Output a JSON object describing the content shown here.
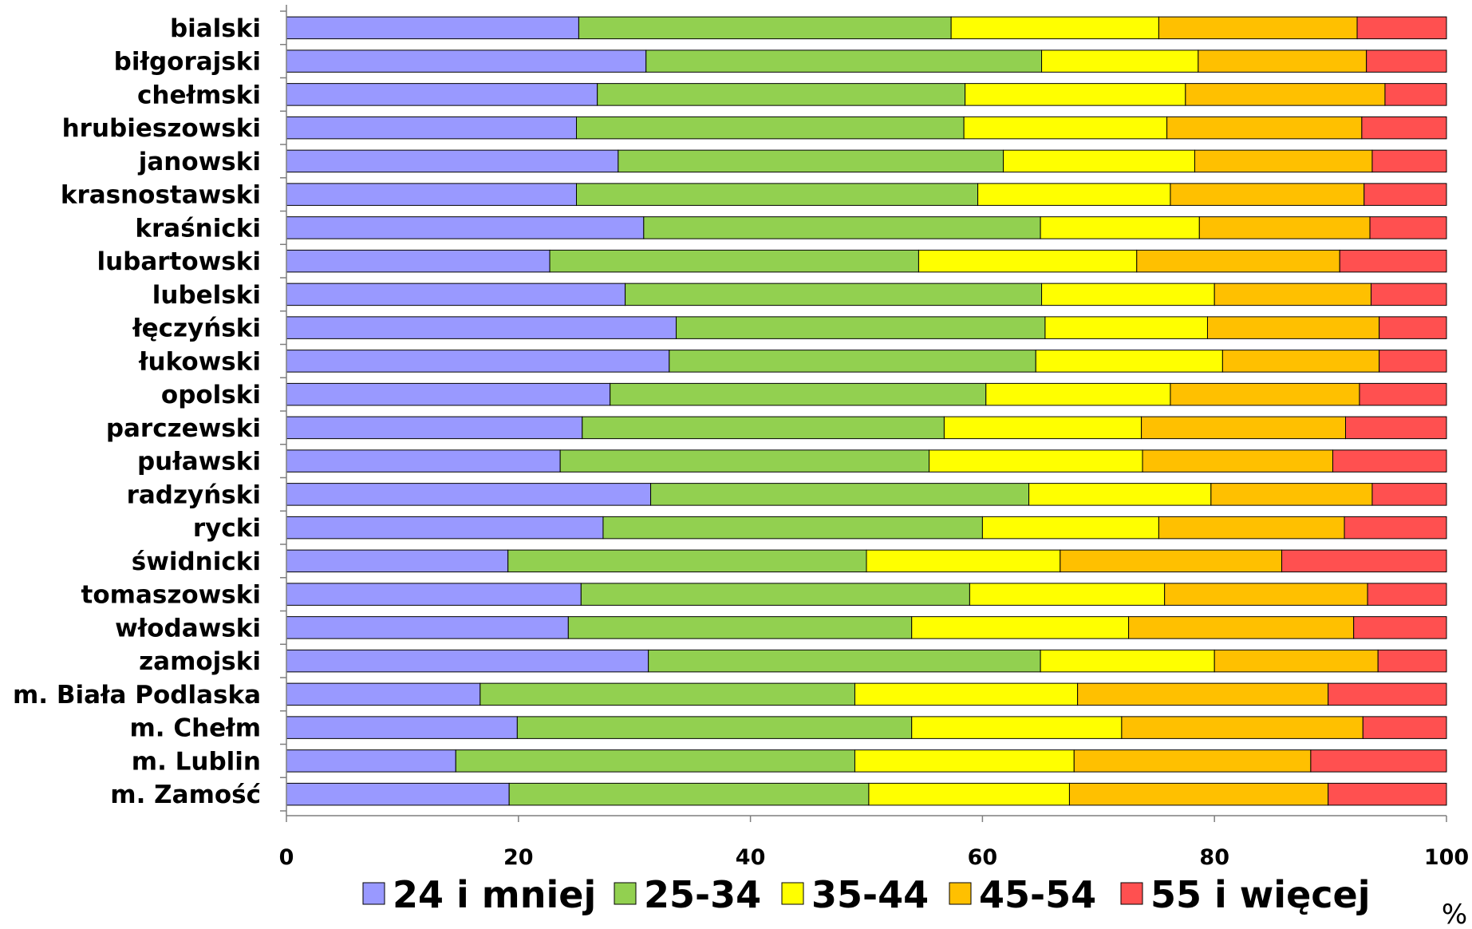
{
  "chart_data": {
    "type": "bar",
    "orientation": "horizontal",
    "stacked": true,
    "categories": [
      "bialski",
      "biłgorajski",
      "chełmski",
      "hrubieszowski",
      "janowski",
      "krasnostawski",
      "kraśnicki",
      "lubartowski",
      "lubelski",
      "łęczyński",
      "łukowski",
      "opolski",
      "parczewski",
      "puławski",
      "radzyński",
      "rycki",
      "świdnicki",
      "tomaszowski",
      "włodawski",
      "zamojski",
      "m. Biała Podlaska",
      "m. Chełm",
      "m. Lublin",
      "m. Zamość"
    ],
    "series": [
      {
        "name": "24 i mniej",
        "color": "#9999ff",
        "values": [
          25.2,
          31.0,
          26.8,
          25.0,
          28.6,
          25.0,
          30.8,
          22.7,
          29.2,
          33.6,
          33.0,
          27.9,
          25.5,
          23.6,
          31.4,
          27.3,
          19.1,
          25.4,
          24.3,
          31.2,
          16.7,
          19.9,
          14.6,
          19.2
        ]
      },
      {
        "name": "25-34",
        "color": "#92d050",
        "values": [
          32.1,
          34.1,
          31.7,
          33.4,
          33.2,
          34.6,
          34.2,
          31.8,
          35.9,
          31.8,
          31.6,
          32.4,
          31.2,
          31.8,
          32.6,
          32.7,
          30.9,
          33.5,
          29.6,
          33.8,
          32.3,
          34.0,
          34.4,
          31.0
        ]
      },
      {
        "name": "35-44",
        "color": "#ffff00",
        "values": [
          17.9,
          13.5,
          19.0,
          17.5,
          16.5,
          16.6,
          13.7,
          18.8,
          14.9,
          14.0,
          16.1,
          15.9,
          17.0,
          18.4,
          15.7,
          15.2,
          16.7,
          16.8,
          18.7,
          15.0,
          19.2,
          18.1,
          18.9,
          17.3
        ]
      },
      {
        "name": "45-54",
        "color": "#ffc000",
        "values": [
          17.1,
          14.5,
          17.2,
          16.8,
          15.3,
          16.7,
          14.7,
          17.5,
          13.5,
          14.8,
          13.5,
          16.3,
          17.6,
          16.4,
          13.9,
          16.0,
          19.1,
          17.5,
          19.4,
          14.1,
          21.6,
          20.8,
          20.4,
          22.3
        ]
      },
      {
        "name": "55 i więcej",
        "color": "#ff5050",
        "values": [
          7.7,
          6.9,
          5.3,
          7.3,
          6.4,
          7.1,
          6.6,
          9.2,
          6.5,
          5.8,
          5.8,
          7.5,
          8.7,
          9.8,
          6.4,
          8.8,
          14.2,
          6.8,
          8.0,
          5.9,
          10.2,
          7.2,
          11.7,
          10.2
        ]
      }
    ],
    "x_ticks": [
      "0",
      "20",
      "40",
      "60",
      "80",
      "100"
    ],
    "xlim": [
      0,
      100
    ],
    "unit_label": "%",
    "legend_position": "bottom",
    "grid": false
  }
}
